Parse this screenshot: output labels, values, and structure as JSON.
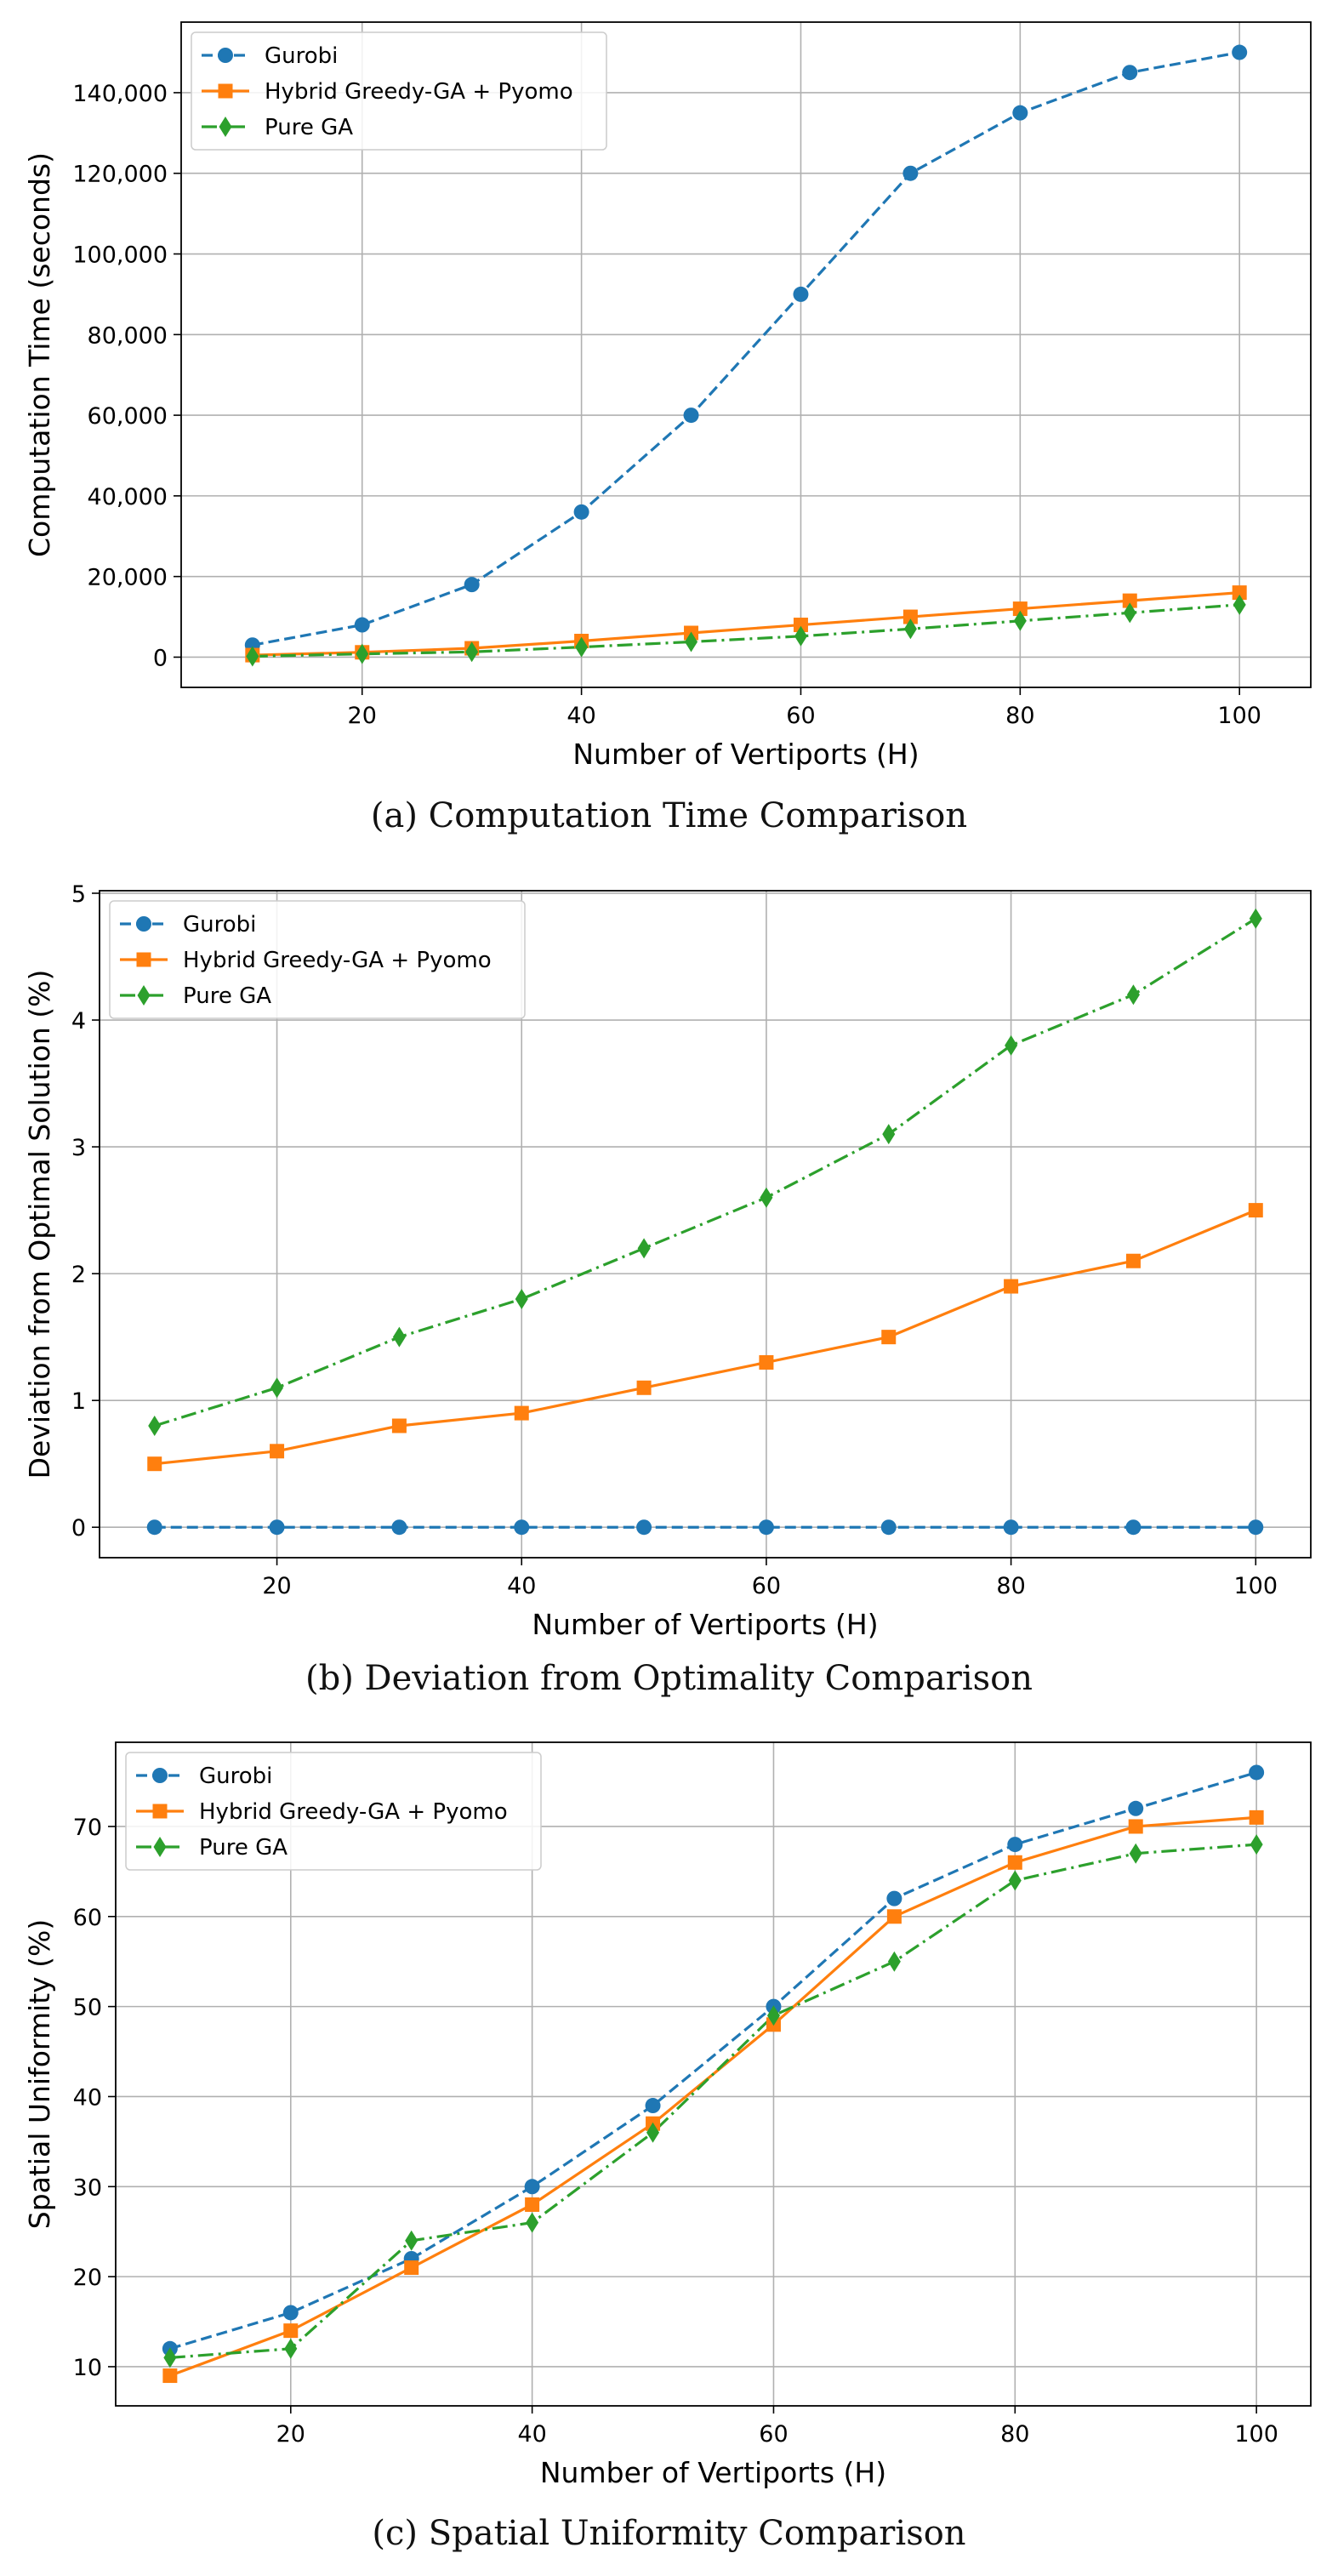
{
  "colors": {
    "gurobi": "#1f77b4",
    "hybrid": "#ff7f0e",
    "pure": "#2ca02c",
    "grid": "#b0b0b0"
  },
  "chart_data": [
    {
      "type": "line",
      "caption": "(a) Computation Time Comparison",
      "xlabel": "Number of Vertiports (H)",
      "ylabel": "Computation Time (seconds)",
      "x": [
        10,
        20,
        30,
        40,
        50,
        60,
        70,
        80,
        90,
        100
      ],
      "xlim": [
        3.5,
        106.5
      ],
      "ylim": [
        -7500,
        157500
      ],
      "xticks": [
        20,
        40,
        60,
        80,
        100
      ],
      "yticks": [
        0,
        20000,
        40000,
        60000,
        80000,
        100000,
        120000,
        140000
      ],
      "ytick_labels": [
        "0",
        "20,000",
        "40,000",
        "60,000",
        "80,000",
        "100,000",
        "120,000",
        "140,000"
      ],
      "legend": "top-left",
      "series": [
        {
          "name": "Gurobi",
          "style": "dashed",
          "marker": "circle",
          "values": [
            3000,
            8000,
            18000,
            36000,
            60000,
            90000,
            120000,
            135000,
            145000,
            150000
          ]
        },
        {
          "name": "Hybrid Greedy-GA + Pyomo",
          "style": "solid",
          "marker": "square",
          "values": [
            500,
            1200,
            2200,
            4000,
            6000,
            8000,
            10000,
            12000,
            14000,
            16000
          ]
        },
        {
          "name": "Pure GA",
          "style": "dashdot",
          "marker": "diamond",
          "values": [
            200,
            800,
            1300,
            2500,
            3800,
            5200,
            7000,
            9000,
            11000,
            13000
          ]
        }
      ]
    },
    {
      "type": "line",
      "caption": "(b) Deviation from Optimality Comparison",
      "xlabel": "Number of Vertiports (H)",
      "ylabel": "Deviation from Optimal Solution (%)",
      "x": [
        10,
        20,
        30,
        40,
        50,
        60,
        70,
        80,
        90,
        100
      ],
      "xlim": [
        5.5,
        104.5
      ],
      "ylim": [
        -0.24,
        5.02
      ],
      "xticks": [
        20,
        40,
        60,
        80,
        100
      ],
      "yticks": [
        0,
        1,
        2,
        3,
        4,
        5
      ],
      "ytick_labels": [
        "0",
        "1",
        "2",
        "3",
        "4",
        "5"
      ],
      "legend": "top-left",
      "series": [
        {
          "name": "Gurobi",
          "style": "dashed",
          "marker": "circle",
          "values": [
            0,
            0,
            0,
            0,
            0,
            0,
            0,
            0,
            0,
            0
          ]
        },
        {
          "name": "Hybrid Greedy-GA + Pyomo",
          "style": "solid",
          "marker": "square",
          "values": [
            0.5,
            0.6,
            0.8,
            0.9,
            1.1,
            1.3,
            1.5,
            1.9,
            2.1,
            2.5
          ]
        },
        {
          "name": "Pure GA",
          "style": "dashdot",
          "marker": "diamond",
          "values": [
            0.8,
            1.1,
            1.5,
            1.8,
            2.2,
            2.6,
            3.1,
            3.8,
            4.2,
            4.8
          ]
        }
      ]
    },
    {
      "type": "line",
      "caption": "(c) Spatial Uniformity Comparison",
      "xlabel": "Number of Vertiports (H)",
      "ylabel": "Spatial Uniformity (%)",
      "x": [
        10,
        20,
        30,
        40,
        50,
        60,
        70,
        80,
        90,
        100
      ],
      "xlim": [
        5.5,
        104.5
      ],
      "ylim": [
        5.65,
        79.35
      ],
      "xticks": [
        20,
        40,
        60,
        80,
        100
      ],
      "yticks": [
        10,
        20,
        30,
        40,
        50,
        60,
        70
      ],
      "ytick_labels": [
        "10",
        "20",
        "30",
        "40",
        "50",
        "60",
        "70"
      ],
      "legend": "top-left",
      "series": [
        {
          "name": "Gurobi",
          "style": "dashed",
          "marker": "circle",
          "values": [
            12,
            16,
            22,
            30,
            39,
            50,
            62,
            68,
            72,
            76
          ]
        },
        {
          "name": "Hybrid Greedy-GA + Pyomo",
          "style": "solid",
          "marker": "square",
          "values": [
            9,
            14,
            21,
            28,
            37,
            48,
            60,
            66,
            70,
            71
          ]
        },
        {
          "name": "Pure GA",
          "style": "dashdot",
          "marker": "diamond",
          "values": [
            11,
            12,
            24,
            26,
            36,
            49,
            55,
            64,
            67,
            68
          ]
        }
      ]
    }
  ]
}
